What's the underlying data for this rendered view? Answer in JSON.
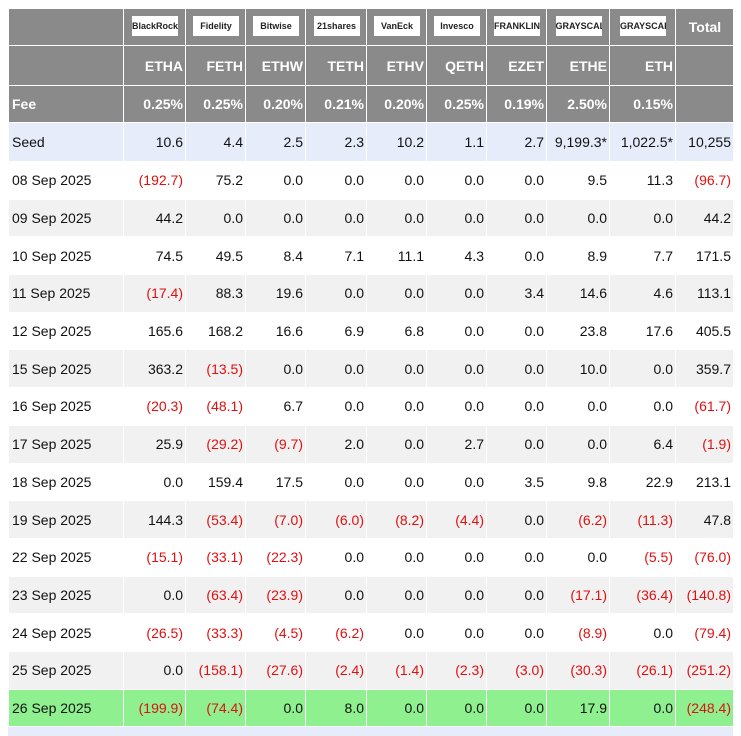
{
  "table": {
    "header": {
      "logos": [
        "BlackRock",
        "Fidelity",
        "Bitwise",
        "21shares",
        "VanEck",
        "Invesco",
        "FRANKLIN TEMPLETON",
        "GRAYSCALE",
        "GRAYSCALE"
      ],
      "total": "Total",
      "tickers": [
        "ETHA",
        "FETH",
        "ETHW",
        "TETH",
        "ETHV",
        "QETH",
        "EZET",
        "ETHE",
        "ETH"
      ],
      "fee_label": "Fee",
      "fees": [
        "0.25%",
        "0.25%",
        "0.20%",
        "0.21%",
        "0.20%",
        "0.25%",
        "0.19%",
        "2.50%",
        "0.15%"
      ]
    },
    "rows": [
      [
        "Seed",
        "10.6",
        "4.4",
        "2.5",
        "2.3",
        "10.2",
        "1.1",
        "2.7",
        "9,199.3*",
        "1,022.5*",
        "10,255"
      ],
      [
        "08 Sep 2025",
        "(192.7)",
        "75.2",
        "0.0",
        "0.0",
        "0.0",
        "0.0",
        "0.0",
        "9.5",
        "11.3",
        "(96.7)"
      ],
      [
        "09 Sep 2025",
        "44.2",
        "0.0",
        "0.0",
        "0.0",
        "0.0",
        "0.0",
        "0.0",
        "0.0",
        "0.0",
        "44.2"
      ],
      [
        "10 Sep 2025",
        "74.5",
        "49.5",
        "8.4",
        "7.1",
        "11.1",
        "4.3",
        "0.0",
        "8.9",
        "7.7",
        "171.5"
      ],
      [
        "11 Sep 2025",
        "(17.4)",
        "88.3",
        "19.6",
        "0.0",
        "0.0",
        "0.0",
        "3.4",
        "14.6",
        "4.6",
        "113.1"
      ],
      [
        "12 Sep 2025",
        "165.6",
        "168.2",
        "16.6",
        "6.9",
        "6.8",
        "0.0",
        "0.0",
        "23.8",
        "17.6",
        "405.5"
      ],
      [
        "15 Sep 2025",
        "363.2",
        "(13.5)",
        "0.0",
        "0.0",
        "0.0",
        "0.0",
        "0.0",
        "10.0",
        "0.0",
        "359.7"
      ],
      [
        "16 Sep 2025",
        "(20.3)",
        "(48.1)",
        "6.7",
        "0.0",
        "0.0",
        "0.0",
        "0.0",
        "0.0",
        "0.0",
        "(61.7)"
      ],
      [
        "17 Sep 2025",
        "25.9",
        "(29.2)",
        "(9.7)",
        "2.0",
        "0.0",
        "2.7",
        "0.0",
        "0.0",
        "6.4",
        "(1.9)"
      ],
      [
        "18 Sep 2025",
        "0.0",
        "159.4",
        "17.5",
        "0.0",
        "0.0",
        "0.0",
        "3.5",
        "9.8",
        "22.9",
        "213.1"
      ],
      [
        "19 Sep 2025",
        "144.3",
        "(53.4)",
        "(7.0)",
        "(6.0)",
        "(8.2)",
        "(4.4)",
        "0.0",
        "(6.2)",
        "(11.3)",
        "47.8"
      ],
      [
        "22 Sep 2025",
        "(15.1)",
        "(33.1)",
        "(22.3)",
        "0.0",
        "0.0",
        "0.0",
        "0.0",
        "0.0",
        "(5.5)",
        "(76.0)"
      ],
      [
        "23 Sep 2025",
        "0.0",
        "(63.4)",
        "(23.9)",
        "0.0",
        "0.0",
        "0.0",
        "0.0",
        "(17.1)",
        "(36.4)",
        "(140.8)"
      ],
      [
        "24 Sep 2025",
        "(26.5)",
        "(33.3)",
        "(4.5)",
        "(6.2)",
        "0.0",
        "0.0",
        "0.0",
        "(8.9)",
        "0.0",
        "(79.4)"
      ],
      [
        "25 Sep 2025",
        "0.0",
        "(158.1)",
        "(27.6)",
        "(2.4)",
        "(1.4)",
        "(2.3)",
        "(3.0)",
        "(30.3)",
        "(26.1)",
        "(251.2)"
      ],
      [
        "26 Sep 2025",
        "(199.9)",
        "(74.4)",
        "0.0",
        "8.0",
        "0.0",
        "0.0",
        "0.0",
        "17.9",
        "0.0",
        "(248.4)"
      ]
    ]
  }
}
